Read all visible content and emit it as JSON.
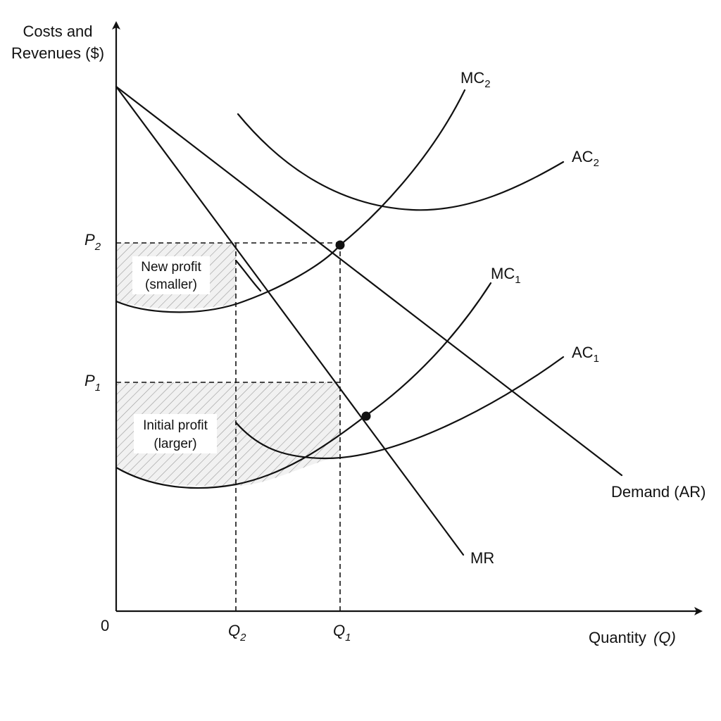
{
  "axes": {
    "y_label_line1": "Costs and",
    "y_label_line2": "Revenues ($)",
    "x_label": "Quantity",
    "x_label_var": "(Q)",
    "origin": "0"
  },
  "prices": {
    "p2_base": "P",
    "p2_sub": "2",
    "p1_base": "P",
    "p1_sub": "1"
  },
  "quantities": {
    "q2_base": "Q",
    "q2_sub": "2",
    "q1_base": "Q",
    "q1_sub": "1"
  },
  "curves": {
    "mc2_base": "MC",
    "mc2_sub": "2",
    "ac2_base": "AC",
    "ac2_sub": "2",
    "mc1_base": "MC",
    "mc1_sub": "1",
    "ac1_base": "AC",
    "ac1_sub": "1",
    "demand": "Demand (AR)",
    "mr": "MR"
  },
  "regions": {
    "new_profit_line1": "New profit",
    "new_profit_line2": "(smaller)",
    "initial_profit_line1": "Initial profit",
    "initial_profit_line2": "(larger)"
  },
  "colors": {
    "ink": "#111111",
    "hatch": "#9a9a9a",
    "background": "#ffffff"
  }
}
